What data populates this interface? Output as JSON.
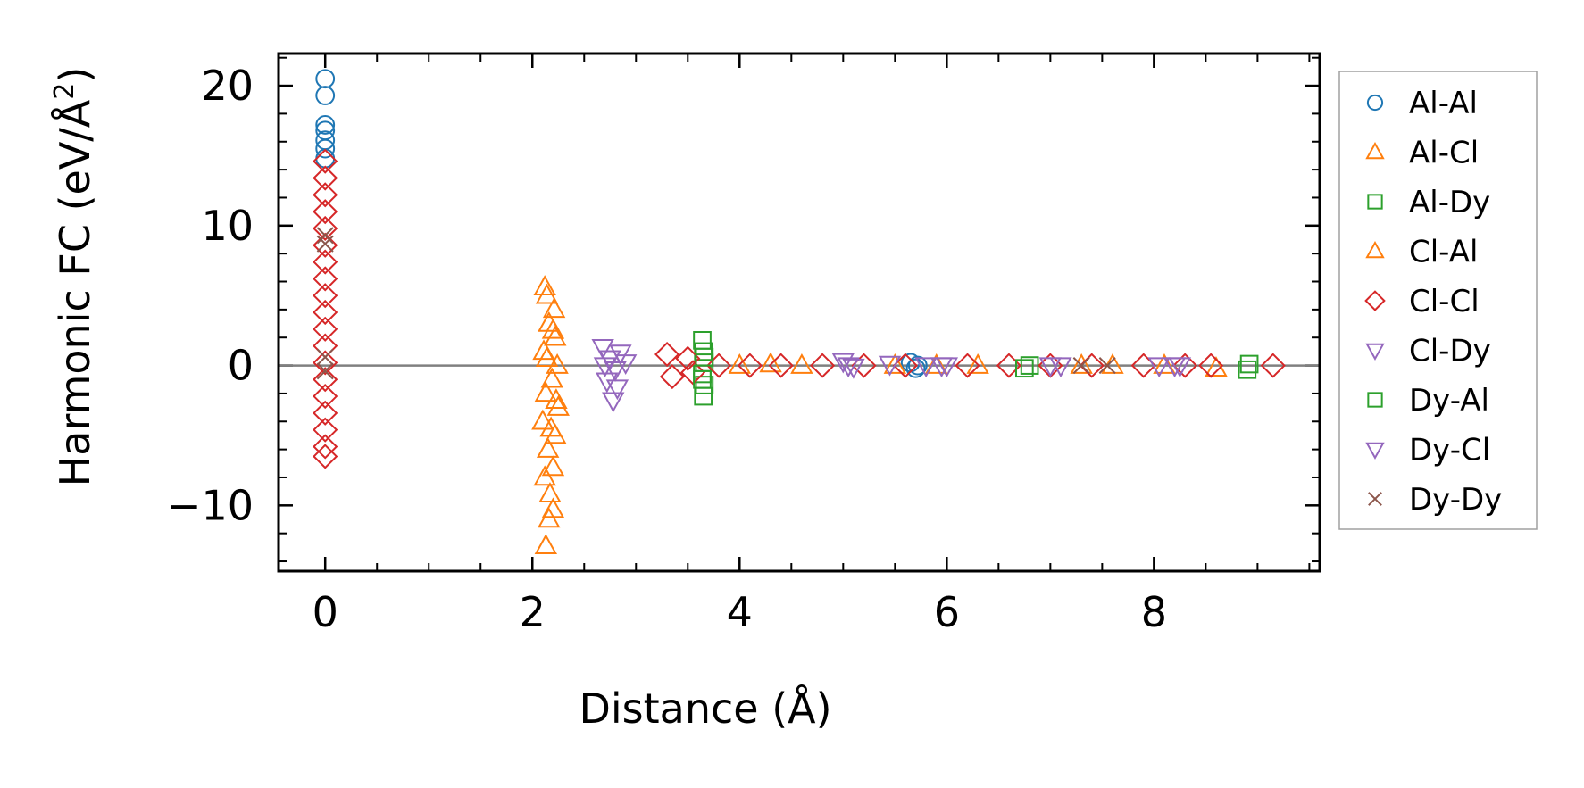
{
  "chart_data": {
    "type": "scatter",
    "xlabel": "Distance (Å)",
    "ylabel_main": "Harmonic FC (eV/Å",
    "ylabel_sup": "2",
    "ylabel_close": ")",
    "xlim": [
      -0.45,
      9.6
    ],
    "ylim": [
      -14.7,
      22.3
    ],
    "xticks": [
      0,
      2,
      4,
      6,
      8
    ],
    "xtick_labels": [
      "0",
      "2",
      "4",
      "6",
      "8"
    ],
    "yticks": [
      -10,
      0,
      10,
      20
    ],
    "ytick_labels": [
      "−10",
      "0",
      "10",
      "20"
    ],
    "zero_line": true,
    "legend_position": "outside-right",
    "series": [
      {
        "name": "Al-Al",
        "marker": "circle",
        "color": "#1f77b4",
        "points": [
          [
            0,
            20.5
          ],
          [
            0,
            19.3
          ],
          [
            0,
            17.2
          ],
          [
            0,
            16.8
          ],
          [
            0,
            16.1
          ],
          [
            0,
            15.5
          ],
          [
            0,
            14.8
          ],
          [
            5.65,
            0.2
          ],
          [
            5.7,
            -0.2
          ],
          [
            5.72,
            0.0
          ]
        ]
      },
      {
        "name": "Al-Cl",
        "marker": "triangle-up",
        "color": "#ff7f0e",
        "points": [
          [
            2.13,
            -12.9
          ],
          [
            2.16,
            -11.0
          ],
          [
            2.2,
            -10.3
          ],
          [
            2.17,
            -9.2
          ],
          [
            2.12,
            -8.0
          ],
          [
            2.2,
            -7.3
          ],
          [
            2.15,
            -6.0
          ],
          [
            2.22,
            -5.0
          ],
          [
            2.1,
            -4.0
          ],
          [
            2.25,
            -3.0
          ],
          [
            2.13,
            -2.0
          ],
          [
            2.19,
            -1.0
          ],
          [
            2.24,
            0.0
          ],
          [
            2.11,
            1.0
          ],
          [
            2.22,
            2.0
          ],
          [
            2.16,
            3.0
          ],
          [
            2.21,
            4.0
          ],
          [
            2.14,
            5.0
          ],
          [
            2.12,
            5.6
          ],
          [
            4.0,
            0.0
          ],
          [
            4.6,
            0.0
          ],
          [
            5.5,
            0.0
          ],
          [
            6.3,
            0.0
          ],
          [
            7.6,
            0.0
          ],
          [
            8.6,
            -0.2
          ]
        ]
      },
      {
        "name": "Al-Dy",
        "marker": "square",
        "color": "#2ca02c",
        "points": [
          [
            3.64,
            1.8
          ],
          [
            3.65,
            1.0
          ],
          [
            3.66,
            0.2
          ],
          [
            3.64,
            -0.6
          ],
          [
            3.66,
            -1.4
          ],
          [
            3.65,
            -2.2
          ],
          [
            6.8,
            0.0
          ],
          [
            8.92,
            0.1
          ]
        ]
      },
      {
        "name": "Cl-Al",
        "marker": "triangle-up",
        "color": "#ff7f0e",
        "points": [
          [
            2.18,
            -4.5
          ],
          [
            2.23,
            -2.5
          ],
          [
            2.14,
            0.5
          ],
          [
            2.2,
            2.5
          ],
          [
            4.3,
            0.1
          ],
          [
            5.9,
            0.0
          ],
          [
            7.3,
            0.0
          ],
          [
            8.1,
            0.0
          ]
        ]
      },
      {
        "name": "Cl-Cl",
        "marker": "diamond",
        "color": "#d62728",
        "points": [
          [
            0,
            14.6
          ],
          [
            0,
            13.4
          ],
          [
            0,
            12.2
          ],
          [
            0,
            11.0
          ],
          [
            0,
            9.8
          ],
          [
            0,
            8.6
          ],
          [
            0,
            7.4
          ],
          [
            0,
            6.2
          ],
          [
            0,
            5.0
          ],
          [
            0,
            3.8
          ],
          [
            0,
            2.6
          ],
          [
            0,
            1.4
          ],
          [
            0,
            0.2
          ],
          [
            0,
            -1.0
          ],
          [
            0,
            -2.2
          ],
          [
            0,
            -3.4
          ],
          [
            0,
            -4.6
          ],
          [
            0,
            -5.8
          ],
          [
            0,
            -6.5
          ],
          [
            3.3,
            0.8
          ],
          [
            3.35,
            -0.8
          ],
          [
            3.5,
            0.5
          ],
          [
            3.55,
            -0.5
          ],
          [
            3.8,
            0.0
          ],
          [
            4.1,
            0.0
          ],
          [
            4.4,
            0.0
          ],
          [
            4.8,
            0.0
          ],
          [
            5.2,
            0.0
          ],
          [
            5.6,
            0.0
          ],
          [
            6.2,
            0.0
          ],
          [
            6.6,
            0.0
          ],
          [
            7.0,
            0.0
          ],
          [
            7.4,
            0.0
          ],
          [
            7.9,
            0.0
          ],
          [
            8.3,
            0.0
          ],
          [
            8.55,
            0.0
          ],
          [
            9.15,
            0.0
          ]
        ]
      },
      {
        "name": "Cl-Dy",
        "marker": "triangle-down",
        "color": "#9467bd",
        "points": [
          [
            2.68,
            1.3
          ],
          [
            2.75,
            0.5
          ],
          [
            2.8,
            -0.3
          ],
          [
            2.72,
            -1.1
          ],
          [
            2.85,
            0.9
          ],
          [
            2.78,
            -2.5
          ],
          [
            2.9,
            0.2
          ],
          [
            5.0,
            0.3
          ],
          [
            5.1,
            -0.1
          ],
          [
            5.45,
            0.1
          ],
          [
            5.8,
            0.0
          ],
          [
            5.95,
            0.0
          ],
          [
            7.0,
            0.0
          ],
          [
            8.05,
            0.0
          ],
          [
            8.25,
            0.0
          ]
        ]
      },
      {
        "name": "Dy-Al",
        "marker": "square",
        "color": "#2ca02c",
        "points": [
          [
            3.66,
            0.6
          ],
          [
            3.64,
            -1.0
          ],
          [
            6.75,
            -0.2
          ],
          [
            8.9,
            -0.3
          ]
        ]
      },
      {
        "name": "Dy-Cl",
        "marker": "triangle-down",
        "color": "#9467bd",
        "points": [
          [
            2.7,
            0.0
          ],
          [
            2.82,
            -1.6
          ],
          [
            5.05,
            0.0
          ],
          [
            6.0,
            0.0
          ],
          [
            7.1,
            0.0
          ],
          [
            8.2,
            0.0
          ]
        ]
      },
      {
        "name": "Dy-Dy",
        "marker": "x",
        "color": "#8c564b",
        "points": [
          [
            0,
            9.3
          ],
          [
            0,
            8.7
          ],
          [
            0,
            0.6
          ],
          [
            0,
            -0.4
          ],
          [
            7.3,
            0.0
          ],
          [
            7.55,
            0.0
          ]
        ]
      }
    ]
  }
}
